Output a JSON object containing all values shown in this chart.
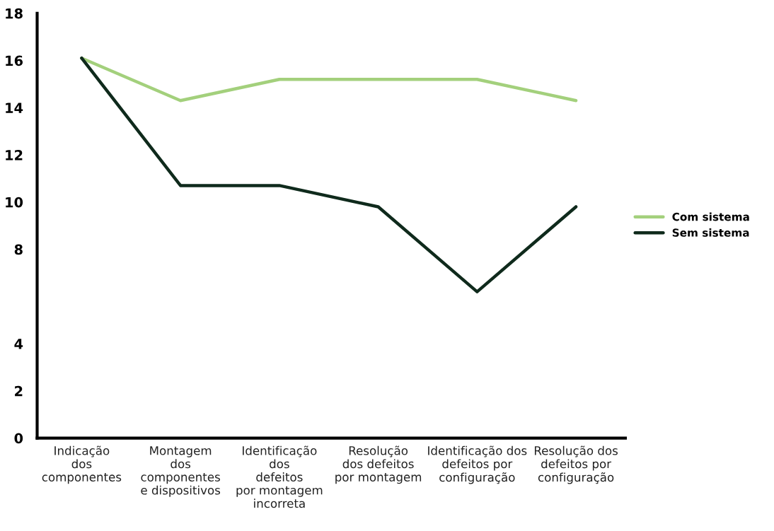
{
  "chart_data": {
    "type": "line",
    "categories": [
      "Indicação\ndos\ncomponentes",
      "Montagem\ndos\ncomponentes\ne dispositivos",
      "Identificação\ndos\ndefeitos\npor montagem\nincorreta",
      "Resolução\ndos defeitos\npor montagem",
      "Identificação dos\ndefeitos por\nconfiguração",
      "Resolução dos\ndefeitos por\nconfiguração"
    ],
    "series": [
      {
        "name": "Com sistema",
        "color": "#a3d07c",
        "values": [
          16.1,
          14.3,
          15.2,
          15.2,
          15.2,
          14.3
        ]
      },
      {
        "name": "Sem sistema",
        "color": "#0f2a1c",
        "values": [
          16.1,
          10.7,
          10.7,
          9.8,
          6.2,
          9.8
        ]
      }
    ],
    "ylim": [
      0,
      18
    ],
    "yticks": [
      0,
      2,
      4,
      8,
      10,
      12,
      14,
      16,
      18
    ],
    "grid": false,
    "legend": "right",
    "marker": "none",
    "line_style": "solid"
  }
}
